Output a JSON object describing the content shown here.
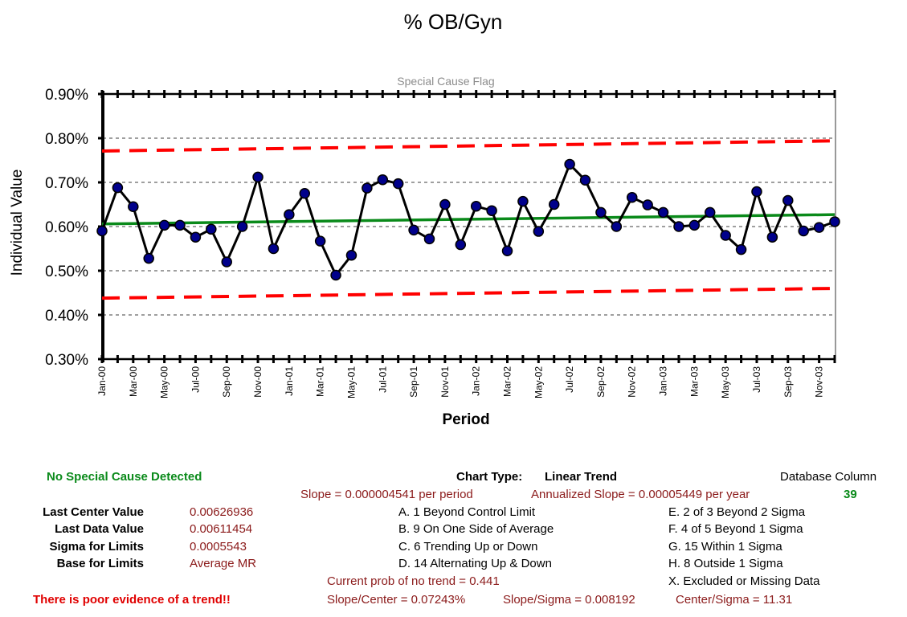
{
  "chart_data": {
    "type": "line",
    "title": "% OB/Gyn",
    "subtitle": "Special Cause Flag",
    "xlabel": "Period",
    "ylabel": "Individual Value",
    "y_ticks": [
      "0.90%",
      "0.80%",
      "0.70%",
      "0.60%",
      "0.50%",
      "0.40%",
      "0.30%"
    ],
    "ylim": [
      0.3,
      0.9
    ],
    "x_tick_labels": [
      "Jan-00",
      "Mar-00",
      "May-00",
      "Jul-00",
      "Sep-00",
      "Nov-00",
      "Jan-01",
      "Mar-01",
      "May-01",
      "Jul-01",
      "Sep-01",
      "Nov-01",
      "Jan-02",
      "Mar-02",
      "May-02",
      "Jul-02",
      "Sep-02",
      "Nov-02",
      "Jan-03",
      "Mar-03",
      "May-03",
      "Jul-03",
      "Sep-03",
      "Nov-03"
    ],
    "grid": "horizontal dashed",
    "colors": {
      "data": "#000000",
      "points": "#00008b",
      "center": "#0a8a1a",
      "limits": "#ff0000"
    },
    "series": [
      {
        "values": [
          0.59,
          0.688,
          0.645,
          0.528,
          0.603,
          0.603,
          0.576,
          0.594,
          0.52,
          0.6,
          0.712,
          0.55,
          0.627,
          0.675,
          0.567,
          0.49,
          0.535,
          0.687,
          0.706,
          0.697,
          0.592,
          0.572,
          0.65,
          0.559,
          0.646,
          0.636,
          0.545,
          0.657,
          0.589,
          0.65,
          0.741,
          0.705,
          0.632,
          0.6,
          0.666,
          0.649,
          0.632,
          0.6,
          0.603,
          0.632,
          0.58,
          0.548,
          0.679,
          0.576,
          0.659,
          0.59,
          0.598,
          0.611
        ]
      },
      {
        "values_start_end": [
          0.606,
          0.627
        ]
      },
      {
        "values_start_end": [
          0.771,
          0.794
        ]
      },
      {
        "values_start_end": [
          0.438,
          0.46
        ]
      }
    ]
  },
  "panel": {
    "no_special_cause": "No Special Cause Detected",
    "poor_evidence": "There is poor evidence of a trend!!",
    "last_center_label": "Last Center Value",
    "last_center_value": "0.00626936",
    "last_data_label": "Last Data Value",
    "last_data_value": "0.00611454",
    "sigma_label": "Sigma for Limits",
    "sigma_value": "0.0005543",
    "base_label": "Base for Limits",
    "base_value": "Average MR",
    "chart_type_label": "Chart Type:",
    "chart_type_value": "Linear Trend",
    "slope": "Slope = 0.000004541 per period",
    "annualized_slope": "Annualized Slope = 0.00005449 per year",
    "db_column_label": "Database Column",
    "db_column_value": "39",
    "rules": [
      "A.  1 Beyond Control Limit",
      "B.  9 On One Side of Average",
      "C.  6 Trending Up or Down",
      "D.  14 Alternating  Up & Down",
      "E.  2 of 3 Beyond 2 Sigma",
      "F.  4 of 5 Beyond 1 Sigma",
      "G.  15 Within 1 Sigma",
      "H.  8 Outside 1 Sigma",
      "X.  Excluded or Missing Data"
    ],
    "prob_no_trend": "Current prob of no trend = 0.441",
    "slope_center": "Slope/Center = 0.07243%",
    "slope_sigma": "Slope/Sigma = 0.008192",
    "center_sigma": "Center/Sigma = 11.31"
  }
}
